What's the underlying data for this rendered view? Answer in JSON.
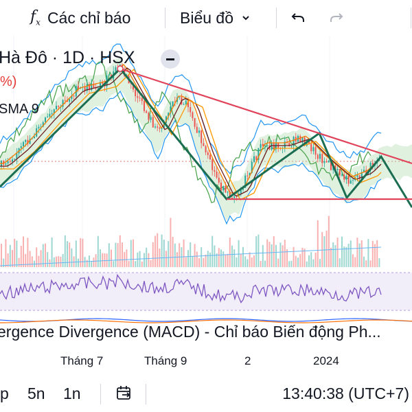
{
  "toolbar": {
    "indicators_label": "Các chỉ báo",
    "chart_type_label": "Biểu đồ",
    "indicators_icon": "function-icon",
    "dropdown_icon": "chevron-down-icon",
    "undo_icon": "undo-icon",
    "redo_icon": "redo-icon"
  },
  "legend": {
    "symbol": "Hà Đô · 1D · HSX",
    "change_fragment": "%)",
    "sma_label": "SMA 9"
  },
  "macd_legend": "ergence Divergence (MACD) - Chỉ báo Biến động Ph...",
  "time_axis": [
    "Tháng 7",
    "Tháng 9",
    "2",
    "2024"
  ],
  "bottom_bar": {
    "timeframes": [
      "p",
      "5n",
      "1n"
    ],
    "goto_icon": "calendar-arrow-icon",
    "clock": "13:40:38 (UTC+7)"
  },
  "colors": {
    "candle_up": "#26a69a",
    "candle_down": "#ef5350",
    "pattern_line": "#1b6e52",
    "resistance_line": "#e0435a",
    "rsi_line": "#7e57c2",
    "cloud_green": "#a5d6a7",
    "cloud_red": "#ffcdd2"
  }
}
